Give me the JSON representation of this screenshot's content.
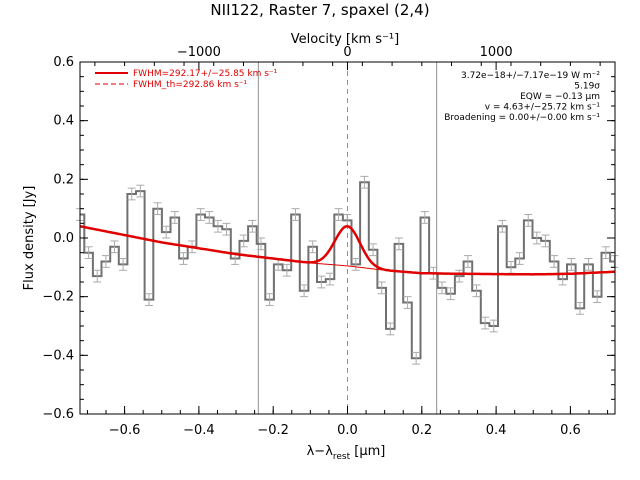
{
  "chart_data": {
    "type": "line",
    "title": "NII122, Raster 7, spaxel (2,4)",
    "xlabel": "λ−λ",
    "xlabel_sub": "rest",
    "xlabel_unit": " [μm]",
    "ylabel": "Flux density [Jy]",
    "top_axis_label": "Velocity [km s⁻¹]",
    "xlim": [
      -0.72,
      0.72
    ],
    "ylim": [
      -0.6,
      0.6
    ],
    "x_ticks": [
      "−0.6",
      "−0.4",
      "−0.2",
      "0.0",
      "0.2",
      "0.4",
      "0.6"
    ],
    "x_tick_values": [
      -0.6,
      -0.4,
      -0.2,
      0.0,
      0.2,
      0.4,
      0.6
    ],
    "y_ticks": [
      "−0.6",
      "−0.4",
      "−0.2",
      "0.0",
      "0.2",
      "0.4",
      "0.6"
    ],
    "y_tick_values": [
      -0.6,
      -0.4,
      -0.2,
      0.0,
      0.2,
      0.4,
      0.6
    ],
    "top_ticks": [
      "−1000",
      "0",
      "1000"
    ],
    "top_tick_values": [
      -0.4,
      0.0,
      0.4
    ],
    "vlines_gray": [
      -0.24,
      0.24
    ],
    "vline_dashed": 0.0,
    "spectrum": {
      "step": 0.0232,
      "x": [
        -0.72,
        -0.6968,
        -0.6736,
        -0.6504,
        -0.6272,
        -0.604,
        -0.5808,
        -0.5576,
        -0.5344,
        -0.5112,
        -0.488,
        -0.4648,
        -0.4416,
        -0.4184,
        -0.3952,
        -0.372,
        -0.3488,
        -0.3256,
        -0.3024,
        -0.2792,
        -0.256,
        -0.2328,
        -0.2096,
        -0.1864,
        -0.1632,
        -0.14,
        -0.1168,
        -0.0936,
        -0.0704,
        -0.0472,
        -0.024,
        -0.0008,
        0.0224,
        0.0456,
        0.0688,
        0.092,
        0.1152,
        0.1384,
        0.1616,
        0.1848,
        0.208,
        0.2312,
        0.2544,
        0.2776,
        0.3008,
        0.324,
        0.3472,
        0.3704,
        0.3936,
        0.4168,
        0.44,
        0.4632,
        0.4864,
        0.5096,
        0.5328,
        0.556,
        0.5792,
        0.6024,
        0.6256,
        0.6488,
        0.672,
        0.6952,
        0.7184
      ],
      "y": [
        0.08,
        -0.05,
        -0.13,
        -0.08,
        -0.03,
        -0.09,
        0.15,
        0.16,
        -0.21,
        0.1,
        0.02,
        0.07,
        -0.07,
        -0.03,
        0.08,
        0.07,
        0.04,
        0.03,
        -0.07,
        -0.01,
        0.04,
        -0.02,
        -0.21,
        -0.09,
        -0.11,
        0.08,
        -0.18,
        -0.03,
        -0.15,
        -0.14,
        0.08,
        0.06,
        -0.09,
        0.19,
        -0.04,
        -0.17,
        -0.31,
        -0.02,
        -0.22,
        -0.41,
        0.07,
        -0.12,
        -0.17,
        -0.19,
        -0.13,
        -0.08,
        -0.18,
        -0.29,
        -0.3,
        0.04,
        -0.1,
        -0.07,
        0.06,
        0.0,
        -0.01,
        -0.08,
        -0.14,
        -0.09,
        -0.24,
        -0.09,
        -0.2,
        -0.05,
        -0.08
      ],
      "err": [
        0.02,
        0.02,
        0.02,
        0.02,
        0.02,
        0.02,
        0.02,
        0.02,
        0.02,
        0.02,
        0.02,
        0.02,
        0.02,
        0.02,
        0.02,
        0.02,
        0.02,
        0.02,
        0.02,
        0.02,
        0.02,
        0.02,
        0.02,
        0.02,
        0.02,
        0.02,
        0.02,
        0.02,
        0.02,
        0.02,
        0.02,
        0.02,
        0.02,
        0.02,
        0.02,
        0.02,
        0.02,
        0.02,
        0.02,
        0.02,
        0.02,
        0.02,
        0.02,
        0.02,
        0.02,
        0.02,
        0.02,
        0.02,
        0.02,
        0.02,
        0.02,
        0.02,
        0.02,
        0.02,
        0.02,
        0.02,
        0.02,
        0.02,
        0.02,
        0.02,
        0.02,
        0.02,
        0.02
      ]
    },
    "baseline_fit": {
      "x": [
        -0.72,
        -0.6,
        -0.5,
        -0.4,
        -0.3,
        -0.2,
        -0.1,
        0.0,
        0.1,
        0.2,
        0.3,
        0.4,
        0.5,
        0.6,
        0.72
      ],
      "y": [
        0.04,
        0.01,
        -0.015,
        -0.035,
        -0.055,
        -0.07,
        -0.085,
        -0.095,
        -0.11,
        -0.12,
        -0.122,
        -0.123,
        -0.124,
        -0.122,
        -0.115
      ]
    },
    "line_fit": {
      "center": 0.0,
      "amplitude": 0.135,
      "sigma": 0.034,
      "xrange": [
        -0.14,
        0.14
      ]
    },
    "legend": [
      {
        "label": "FWHM=292.17+/−25.85 km s⁻¹",
        "style": "solid",
        "color": "#e00000"
      },
      {
        "label": "FWHM_th=292.86 km s⁻¹",
        "style": "dashed",
        "color": "#e00000"
      }
    ],
    "annotations": [
      "3.72e−18+/−7.17e−19 W m⁻²",
      "5.19σ",
      "EQW = −0.13 μm",
      "v = 4.63+/−25.72 km s⁻¹",
      "Broadening = 0.00+/−0.00 km s⁻¹"
    ],
    "colors": {
      "spectrum": "#707070",
      "errorbar": "#aaaaaa",
      "fit": "#e00000",
      "vlines": "#909090",
      "axes": "#000000"
    }
  }
}
